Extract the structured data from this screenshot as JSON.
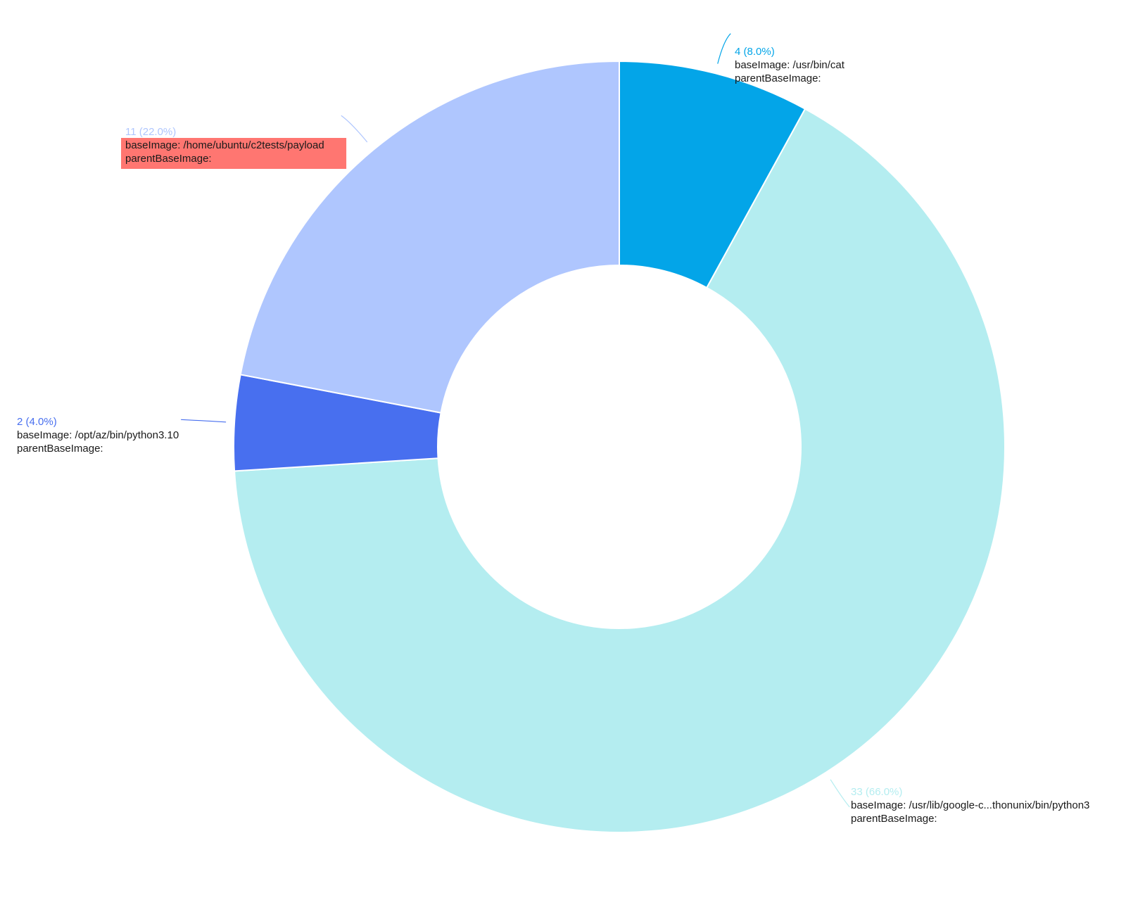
{
  "chart_data": {
    "type": "pie",
    "donut": true,
    "title": "",
    "start_angle_deg": 0,
    "direction": "clockwise",
    "total": 50,
    "slices": [
      {
        "value": 4,
        "value_label": "4 (8.0%)",
        "lines": [
          "baseImage: /usr/bin/cat",
          "parentBaseImage:"
        ],
        "color": "#03a5e8",
        "highlighted": false
      },
      {
        "value": 33,
        "value_label": "33 (66.0%)",
        "lines": [
          "baseImage: /usr/lib/google-c...thonunix/bin/python3",
          "parentBaseImage:"
        ],
        "color": "#b4edf0",
        "highlighted": false
      },
      {
        "value": 2,
        "value_label": "2 (4.0%)",
        "lines": [
          "baseImage: /opt/az/bin/python3.10",
          "parentBaseImage:"
        ],
        "color": "#486fef",
        "highlighted": false
      },
      {
        "value": 11,
        "value_label": "11 (22.0%)",
        "lines": [
          "baseImage: /home/ubuntu/c2tests/payload",
          "parentBaseImage:"
        ],
        "color": "#afc6fe",
        "highlighted": true,
        "highlight_color": "#ff7671"
      }
    ]
  }
}
